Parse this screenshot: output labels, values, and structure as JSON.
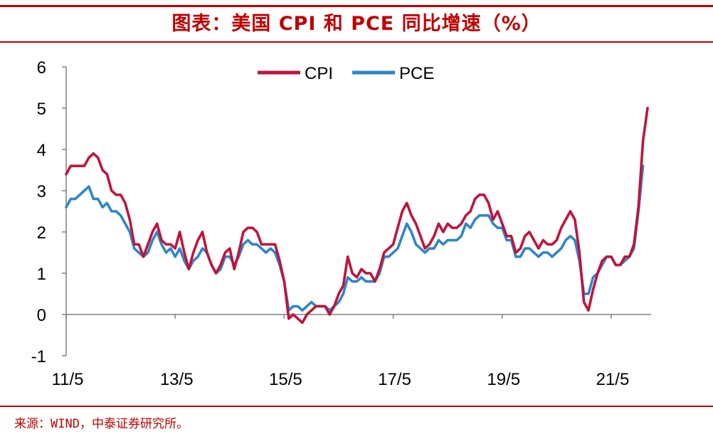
{
  "header": {
    "title": "图表：美国 CPI 和 PCE 同比增速（%）"
  },
  "footer": {
    "source": "来源：WIND，中泰证券研究所。"
  },
  "colors": {
    "accent": "#c00000",
    "cpi": "#c0143c",
    "pce": "#2e86c8",
    "axis": "#808080"
  },
  "chart_data": {
    "type": "line",
    "title": "图表：美国 CPI 和 PCE 同比增速（%）",
    "xlabel": "",
    "ylabel": "",
    "ylim": [
      -1,
      6
    ],
    "yticks": [
      "-1",
      "0",
      "1",
      "2",
      "3",
      "4",
      "5",
      "6"
    ],
    "xticks": [
      "11/5",
      "13/5",
      "15/5",
      "17/5",
      "19/5",
      "21/5"
    ],
    "legend": "top-center",
    "grid": false,
    "x_start": "2011-05",
    "x_unit": "month index from 2011-05",
    "series": [
      {
        "name": "CPI",
        "points": [
          [
            0,
            3.4
          ],
          [
            1,
            3.6
          ],
          [
            3,
            3.6
          ],
          [
            4,
            3.6
          ],
          [
            5,
            3.8
          ],
          [
            6,
            3.9
          ],
          [
            7,
            3.8
          ],
          [
            8,
            3.5
          ],
          [
            9,
            3.4
          ],
          [
            10,
            3.0
          ],
          [
            11,
            2.9
          ],
          [
            12,
            2.9
          ],
          [
            13,
            2.7
          ],
          [
            14,
            2.3
          ],
          [
            15,
            1.7
          ],
          [
            16,
            1.7
          ],
          [
            17,
            1.4
          ],
          [
            18,
            1.7
          ],
          [
            19,
            2.0
          ],
          [
            20,
            2.2
          ],
          [
            21,
            1.8
          ],
          [
            22,
            1.7
          ],
          [
            23,
            1.7
          ],
          [
            24,
            1.6
          ],
          [
            25,
            2.0
          ],
          [
            26,
            1.5
          ],
          [
            27,
            1.1
          ],
          [
            28,
            1.5
          ],
          [
            29,
            1.8
          ],
          [
            30,
            2.0
          ],
          [
            31,
            1.5
          ],
          [
            32,
            1.2
          ],
          [
            33,
            1.0
          ],
          [
            34,
            1.2
          ],
          [
            35,
            1.5
          ],
          [
            36,
            1.6
          ],
          [
            37,
            1.1
          ],
          [
            38,
            1.5
          ],
          [
            39,
            2.0
          ],
          [
            40,
            2.1
          ],
          [
            41,
            2.1
          ],
          [
            42,
            2.0
          ],
          [
            43,
            1.7
          ],
          [
            44,
            1.7
          ],
          [
            45,
            1.7
          ],
          [
            46,
            1.7
          ],
          [
            47,
            1.3
          ],
          [
            48,
            0.8
          ],
          [
            49,
            -0.1
          ],
          [
            50,
            0.0
          ],
          [
            51,
            -0.1
          ],
          [
            52,
            -0.2
          ],
          [
            53,
            0.0
          ],
          [
            54,
            0.1
          ],
          [
            55,
            0.2
          ],
          [
            56,
            0.2
          ],
          [
            57,
            0.2
          ],
          [
            58,
            0.0
          ],
          [
            59,
            0.2
          ],
          [
            60,
            0.5
          ],
          [
            61,
            0.7
          ],
          [
            62,
            1.4
          ],
          [
            63,
            1.0
          ],
          [
            64,
            0.9
          ],
          [
            65,
            1.1
          ],
          [
            66,
            1.0
          ],
          [
            67,
            1.0
          ],
          [
            68,
            0.8
          ],
          [
            69,
            1.1
          ],
          [
            70,
            1.5
          ],
          [
            71,
            1.6
          ],
          [
            72,
            1.7
          ],
          [
            73,
            2.1
          ],
          [
            74,
            2.5
          ],
          [
            75,
            2.7
          ],
          [
            76,
            2.4
          ],
          [
            77,
            2.2
          ],
          [
            78,
            1.9
          ],
          [
            79,
            1.6
          ],
          [
            80,
            1.7
          ],
          [
            81,
            1.9
          ],
          [
            82,
            2.2
          ],
          [
            83,
            2.0
          ],
          [
            84,
            2.2
          ],
          [
            85,
            2.1
          ],
          [
            86,
            2.1
          ],
          [
            87,
            2.2
          ],
          [
            88,
            2.4
          ],
          [
            89,
            2.5
          ],
          [
            90,
            2.8
          ],
          [
            91,
            2.9
          ],
          [
            92,
            2.9
          ],
          [
            93,
            2.7
          ],
          [
            94,
            2.3
          ],
          [
            95,
            2.5
          ],
          [
            96,
            2.2
          ],
          [
            97,
            1.9
          ],
          [
            98,
            1.9
          ],
          [
            99,
            1.5
          ],
          [
            100,
            1.6
          ],
          [
            101,
            1.9
          ],
          [
            102,
            2.0
          ],
          [
            103,
            1.8
          ],
          [
            104,
            1.6
          ],
          [
            105,
            1.8
          ],
          [
            106,
            1.7
          ],
          [
            107,
            1.7
          ],
          [
            108,
            1.8
          ],
          [
            109,
            2.1
          ],
          [
            110,
            2.3
          ],
          [
            111,
            2.5
          ],
          [
            112,
            2.3
          ],
          [
            113,
            1.5
          ],
          [
            114,
            0.3
          ],
          [
            115,
            0.1
          ],
          [
            116,
            0.6
          ],
          [
            117,
            1.0
          ],
          [
            118,
            1.3
          ],
          [
            119,
            1.4
          ],
          [
            120,
            1.4
          ],
          [
            121,
            1.2
          ],
          [
            122,
            1.2
          ],
          [
            123,
            1.4
          ],
          [
            124,
            1.4
          ],
          [
            125,
            1.7
          ],
          [
            126,
            2.6
          ],
          [
            127,
            4.2
          ],
          [
            128,
            5.0
          ]
        ]
      },
      {
        "name": "PCE",
        "points": [
          [
            0,
            2.6
          ],
          [
            1,
            2.8
          ],
          [
            2,
            2.8
          ],
          [
            3,
            2.9
          ],
          [
            4,
            3.0
          ],
          [
            5,
            3.1
          ],
          [
            6,
            2.8
          ],
          [
            7,
            2.8
          ],
          [
            8,
            2.6
          ],
          [
            9,
            2.7
          ],
          [
            10,
            2.5
          ],
          [
            11,
            2.5
          ],
          [
            12,
            2.4
          ],
          [
            13,
            2.2
          ],
          [
            14,
            2.0
          ],
          [
            15,
            1.6
          ],
          [
            16,
            1.5
          ],
          [
            17,
            1.4
          ],
          [
            18,
            1.5
          ],
          [
            19,
            1.8
          ],
          [
            20,
            2.0
          ],
          [
            21,
            1.7
          ],
          [
            22,
            1.5
          ],
          [
            23,
            1.6
          ],
          [
            24,
            1.4
          ],
          [
            25,
            1.6
          ],
          [
            26,
            1.3
          ],
          [
            27,
            1.1
          ],
          [
            28,
            1.3
          ],
          [
            29,
            1.4
          ],
          [
            30,
            1.6
          ],
          [
            31,
            1.5
          ],
          [
            32,
            1.2
          ],
          [
            33,
            1.0
          ],
          [
            34,
            1.1
          ],
          [
            35,
            1.4
          ],
          [
            36,
            1.4
          ],
          [
            37,
            1.2
          ],
          [
            38,
            1.4
          ],
          [
            39,
            1.7
          ],
          [
            40,
            1.8
          ],
          [
            41,
            1.7
          ],
          [
            42,
            1.7
          ],
          [
            43,
            1.6
          ],
          [
            44,
            1.5
          ],
          [
            45,
            1.6
          ],
          [
            46,
            1.5
          ],
          [
            47,
            1.2
          ],
          [
            48,
            0.8
          ],
          [
            49,
            0.1
          ],
          [
            50,
            0.2
          ],
          [
            51,
            0.2
          ],
          [
            52,
            0.1
          ],
          [
            53,
            0.2
          ],
          [
            54,
            0.3
          ],
          [
            55,
            0.2
          ],
          [
            56,
            0.2
          ],
          [
            57,
            0.2
          ],
          [
            58,
            0.1
          ],
          [
            59,
            0.2
          ],
          [
            60,
            0.3
          ],
          [
            61,
            0.5
          ],
          [
            62,
            0.9
          ],
          [
            63,
            0.8
          ],
          [
            64,
            0.8
          ],
          [
            65,
            0.9
          ],
          [
            66,
            0.8
          ],
          [
            67,
            0.8
          ],
          [
            68,
            0.8
          ],
          [
            69,
            1.0
          ],
          [
            70,
            1.4
          ],
          [
            71,
            1.4
          ],
          [
            72,
            1.5
          ],
          [
            73,
            1.6
          ],
          [
            74,
            1.9
          ],
          [
            75,
            2.2
          ],
          [
            76,
            2.0
          ],
          [
            77,
            1.7
          ],
          [
            78,
            1.6
          ],
          [
            79,
            1.5
          ],
          [
            80,
            1.6
          ],
          [
            81,
            1.6
          ],
          [
            82,
            1.8
          ],
          [
            83,
            1.7
          ],
          [
            84,
            1.8
          ],
          [
            85,
            1.8
          ],
          [
            86,
            1.8
          ],
          [
            87,
            1.9
          ],
          [
            88,
            2.2
          ],
          [
            89,
            2.1
          ],
          [
            90,
            2.3
          ],
          [
            91,
            2.4
          ],
          [
            92,
            2.4
          ],
          [
            93,
            2.4
          ],
          [
            94,
            2.2
          ],
          [
            95,
            2.1
          ],
          [
            96,
            2.1
          ],
          [
            97,
            1.8
          ],
          [
            98,
            1.8
          ],
          [
            99,
            1.4
          ],
          [
            100,
            1.4
          ],
          [
            101,
            1.6
          ],
          [
            102,
            1.6
          ],
          [
            103,
            1.5
          ],
          [
            104,
            1.4
          ],
          [
            105,
            1.5
          ],
          [
            106,
            1.5
          ],
          [
            107,
            1.4
          ],
          [
            108,
            1.5
          ],
          [
            109,
            1.6
          ],
          [
            110,
            1.8
          ],
          [
            111,
            1.9
          ],
          [
            112,
            1.8
          ],
          [
            113,
            1.3
          ],
          [
            114,
            0.5
          ],
          [
            115,
            0.5
          ],
          [
            116,
            0.9
          ],
          [
            117,
            1.0
          ],
          [
            118,
            1.2
          ],
          [
            119,
            1.4
          ],
          [
            120,
            1.4
          ],
          [
            121,
            1.2
          ],
          [
            122,
            1.2
          ],
          [
            123,
            1.3
          ],
          [
            124,
            1.4
          ],
          [
            125,
            1.6
          ],
          [
            126,
            2.5
          ],
          [
            127,
            3.6
          ]
        ]
      }
    ]
  }
}
